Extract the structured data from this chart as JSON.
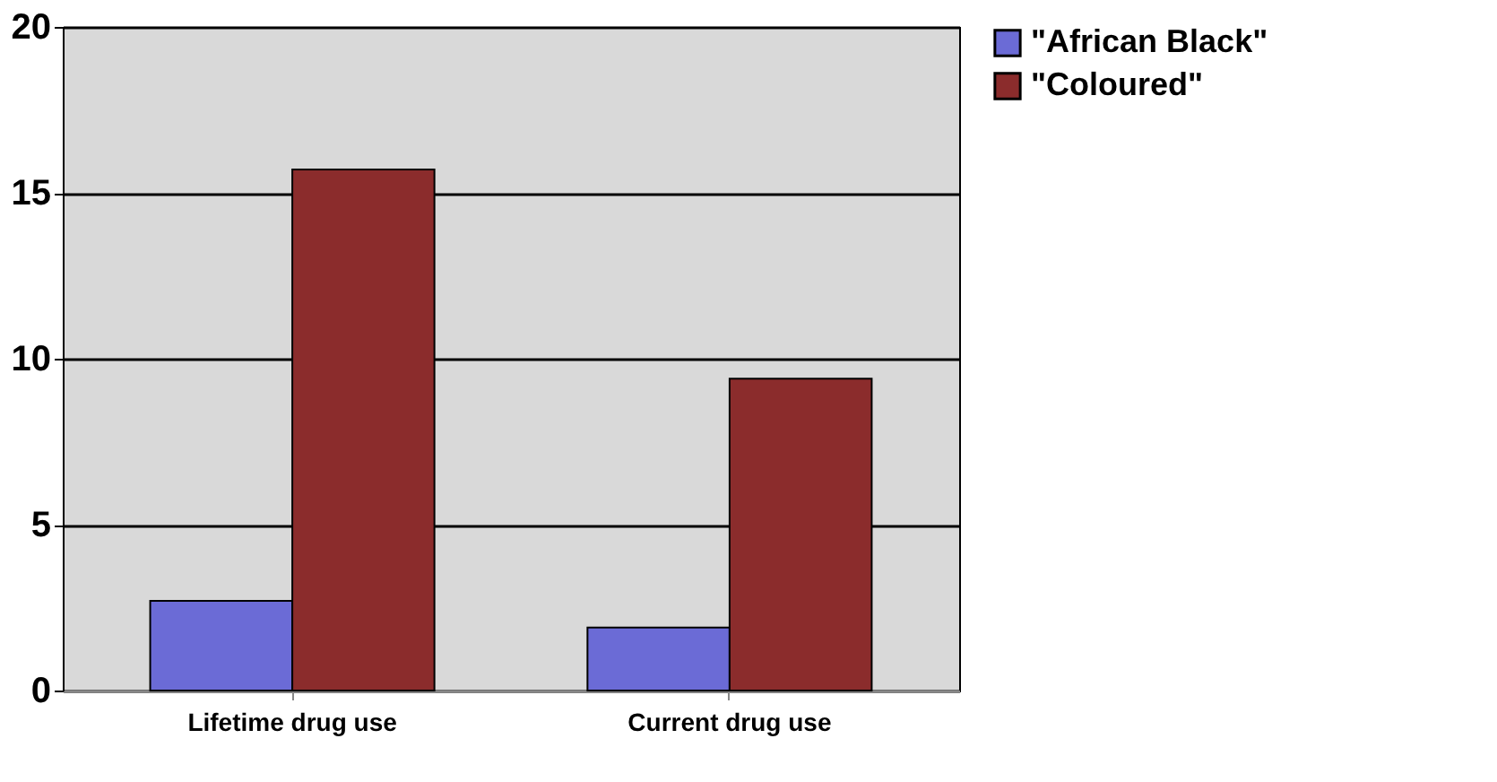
{
  "chart_data": {
    "type": "bar",
    "categories": [
      "Lifetime drug use",
      "Current drug use"
    ],
    "series": [
      {
        "name": "\"African Black\"",
        "color": "#6b6bd6",
        "values": [
          2.7,
          1.9
        ]
      },
      {
        "name": "\"Coloured\"",
        "color": "#8b2c2c",
        "values": [
          15.7,
          9.4
        ]
      }
    ],
    "ylim": [
      0,
      20
    ],
    "yticks": [
      0,
      5,
      10,
      15,
      20
    ],
    "grid": "y",
    "legend": "right"
  }
}
